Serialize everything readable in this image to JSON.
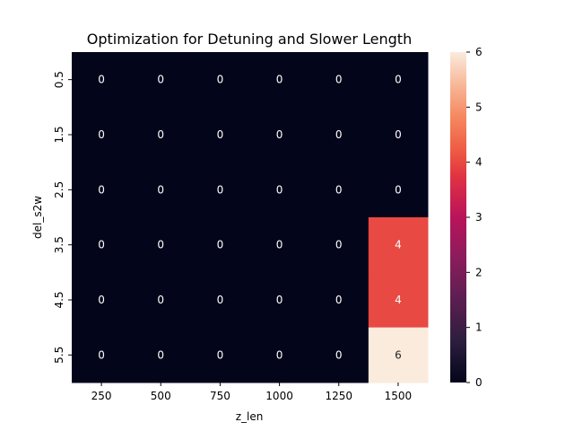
{
  "chart_data": {
    "type": "heatmap",
    "title": "Optimization for Detuning and Slower Length",
    "xlabel": "z_len",
    "ylabel": "del_s2w",
    "x_categories": [
      "250",
      "500",
      "750",
      "1000",
      "1250",
      "1500"
    ],
    "y_categories": [
      "0.5",
      "1.5",
      "2.5",
      "3.5",
      "4.5",
      "5.5"
    ],
    "values": [
      [
        0,
        0,
        0,
        0,
        0,
        0
      ],
      [
        0,
        0,
        0,
        0,
        0,
        0
      ],
      [
        0,
        0,
        0,
        0,
        0,
        0
      ],
      [
        0,
        0,
        0,
        0,
        0,
        4
      ],
      [
        0,
        0,
        0,
        0,
        0,
        4
      ],
      [
        0,
        0,
        0,
        0,
        0,
        6
      ]
    ],
    "colorbar": {
      "range": [
        0,
        6
      ],
      "ticks": [
        "0",
        "1",
        "2",
        "3",
        "4",
        "5",
        "6"
      ]
    },
    "colormap": "rocket",
    "colors": {
      "low": "#03051a",
      "mid": "#ac1759",
      "high": "#faebdd"
    },
    "annotations": true,
    "grid": false
  }
}
